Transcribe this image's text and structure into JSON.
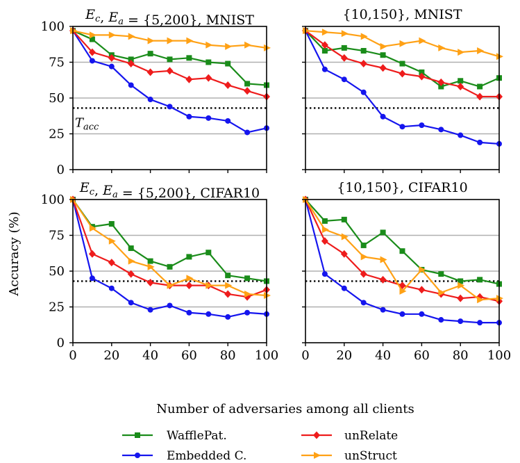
{
  "chart_data": {
    "type": "line",
    "shared": {
      "xlabel": "Number of adversaries among all clients",
      "ylabel": "Accuracy (%)",
      "xlim": [
        0,
        100
      ],
      "ylim": [
        0,
        100
      ],
      "xticks": [
        "0",
        "20",
        "40",
        "60",
        "80",
        "100"
      ],
      "yticks": [
        "0",
        "25",
        "50",
        "75",
        "100"
      ],
      "threshold": {
        "label": "T_acc",
        "value": 43
      }
    },
    "series_styles": [
      {
        "name": "WafflePat.",
        "color": "#1a8c1a",
        "marker": "square"
      },
      {
        "name": "Embedded C.",
        "color": "#1515ee",
        "marker": "circle"
      },
      {
        "name": "unRelate",
        "color": "#ee1c1c",
        "marker": "diamond"
      },
      {
        "name": "unStruct",
        "color": "#ffa115",
        "marker": "triangle-right"
      }
    ],
    "legend": {
      "left": [
        "WafflePat.",
        "Embedded C."
      ],
      "right": [
        "unRelate",
        "unStruct"
      ]
    },
    "x": [
      0,
      10,
      20,
      30,
      40,
      50,
      60,
      70,
      80,
      90,
      100
    ],
    "panels": [
      {
        "title": "E_c, E_a = {5,200}, MNIST",
        "show_tacc_label": true,
        "series": [
          {
            "name": "WafflePat.",
            "values": [
              97,
              91,
              80,
              77,
              81,
              77,
              78,
              75,
              74,
              60,
              59
            ]
          },
          {
            "name": "Embedded C.",
            "values": [
              97,
              76,
              72,
              59,
              49,
              44,
              37,
              36,
              34,
              26,
              29
            ]
          },
          {
            "name": "unRelate",
            "values": [
              97,
              82,
              78,
              74,
              68,
              69,
              63,
              64,
              59,
              55,
              51
            ]
          },
          {
            "name": "unStruct",
            "values": [
              97,
              94,
              94,
              93,
              90,
              90,
              90,
              87,
              86,
              87,
              85
            ]
          }
        ]
      },
      {
        "title": "{10,150}, MNIST",
        "show_tacc_label": false,
        "series": [
          {
            "name": "WafflePat.",
            "values": [
              97,
              83,
              85,
              83,
              80,
              74,
              68,
              58,
              62,
              58,
              64
            ]
          },
          {
            "name": "Embedded C.",
            "values": [
              97,
              70,
              63,
              54,
              37,
              30,
              31,
              28,
              24,
              19,
              18
            ]
          },
          {
            "name": "unRelate",
            "values": [
              97,
              87,
              78,
              74,
              71,
              67,
              65,
              61,
              58,
              51,
              51
            ]
          },
          {
            "name": "unStruct",
            "values": [
              97,
              96,
              95,
              93,
              86,
              88,
              90,
              85,
              82,
              83,
              79
            ]
          }
        ]
      },
      {
        "title": "E_c, E_a = {5,200}, CIFAR10",
        "show_tacc_label": false,
        "series": [
          {
            "name": "WafflePat.",
            "values": [
              100,
              81,
              83,
              66,
              57,
              53,
              60,
              63,
              47,
              45,
              43
            ]
          },
          {
            "name": "Embedded C.",
            "values": [
              100,
              45,
              38,
              28,
              23,
              26,
              21,
              20,
              18,
              21,
              20
            ]
          },
          {
            "name": "unRelate",
            "values": [
              100,
              62,
              56,
              48,
              42,
              40,
              40,
              40,
              34,
              32,
              37
            ]
          },
          {
            "name": "unStruct",
            "values": [
              100,
              80,
              71,
              57,
              53,
              40,
              45,
              40,
              40,
              34,
              33
            ]
          }
        ]
      },
      {
        "title": "{10,150}, CIFAR10",
        "show_tacc_label": false,
        "series": [
          {
            "name": "WafflePat.",
            "values": [
              100,
              85,
              86,
              68,
              77,
              64,
              51,
              48,
              43,
              44,
              41
            ]
          },
          {
            "name": "Embedded C.",
            "values": [
              100,
              48,
              38,
              28,
              23,
              20,
              20,
              16,
              15,
              14,
              14
            ]
          },
          {
            "name": "unRelate",
            "values": [
              100,
              71,
              62,
              48,
              44,
              40,
              37,
              34,
              31,
              32,
              29
            ]
          },
          {
            "name": "unStruct",
            "values": [
              100,
              79,
              74,
              60,
              58,
              36,
              51,
              35,
              40,
              30,
              31
            ]
          }
        ]
      }
    ]
  }
}
